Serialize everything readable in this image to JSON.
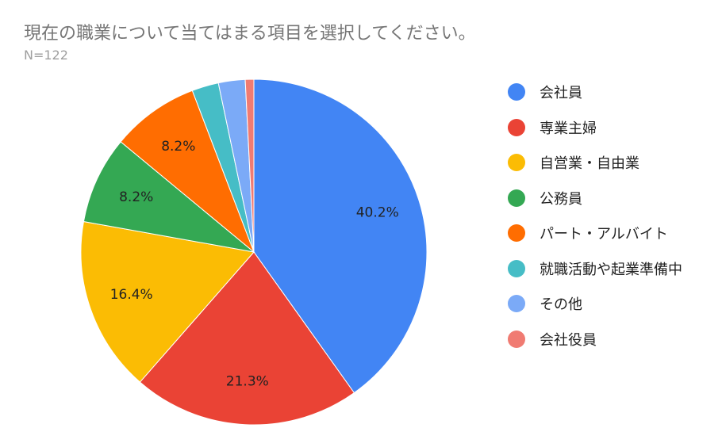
{
  "chart_data": {
    "type": "pie",
    "title": "現在の職業について当てはまる項目を選択してください。",
    "subtitle": "N=122",
    "legend_position": "right",
    "slices": [
      {
        "label": "会社員",
        "value": 40.2,
        "data_label": "40.2%",
        "color": "#4285F4"
      },
      {
        "label": "専業主婦",
        "value": 21.3,
        "data_label": "21.3%",
        "color": "#EA4335"
      },
      {
        "label": "自営業・自由業",
        "value": 16.4,
        "data_label": "16.4%",
        "color": "#FBBC04"
      },
      {
        "label": "公務員",
        "value": 8.2,
        "data_label": "8.2%",
        "color": "#34A853"
      },
      {
        "label": "パート・アルバイト",
        "value": 8.2,
        "data_label": "8.2%",
        "color": "#FF6D01"
      },
      {
        "label": "就職活動や起業準備中",
        "value": 2.5,
        "data_label": "",
        "color": "#46BDC6"
      },
      {
        "label": "その他",
        "value": 2.5,
        "data_label": "",
        "color": "#7BAAF7"
      },
      {
        "label": "会社役員",
        "value": 0.8,
        "data_label": "",
        "color": "#F07B72"
      }
    ]
  }
}
